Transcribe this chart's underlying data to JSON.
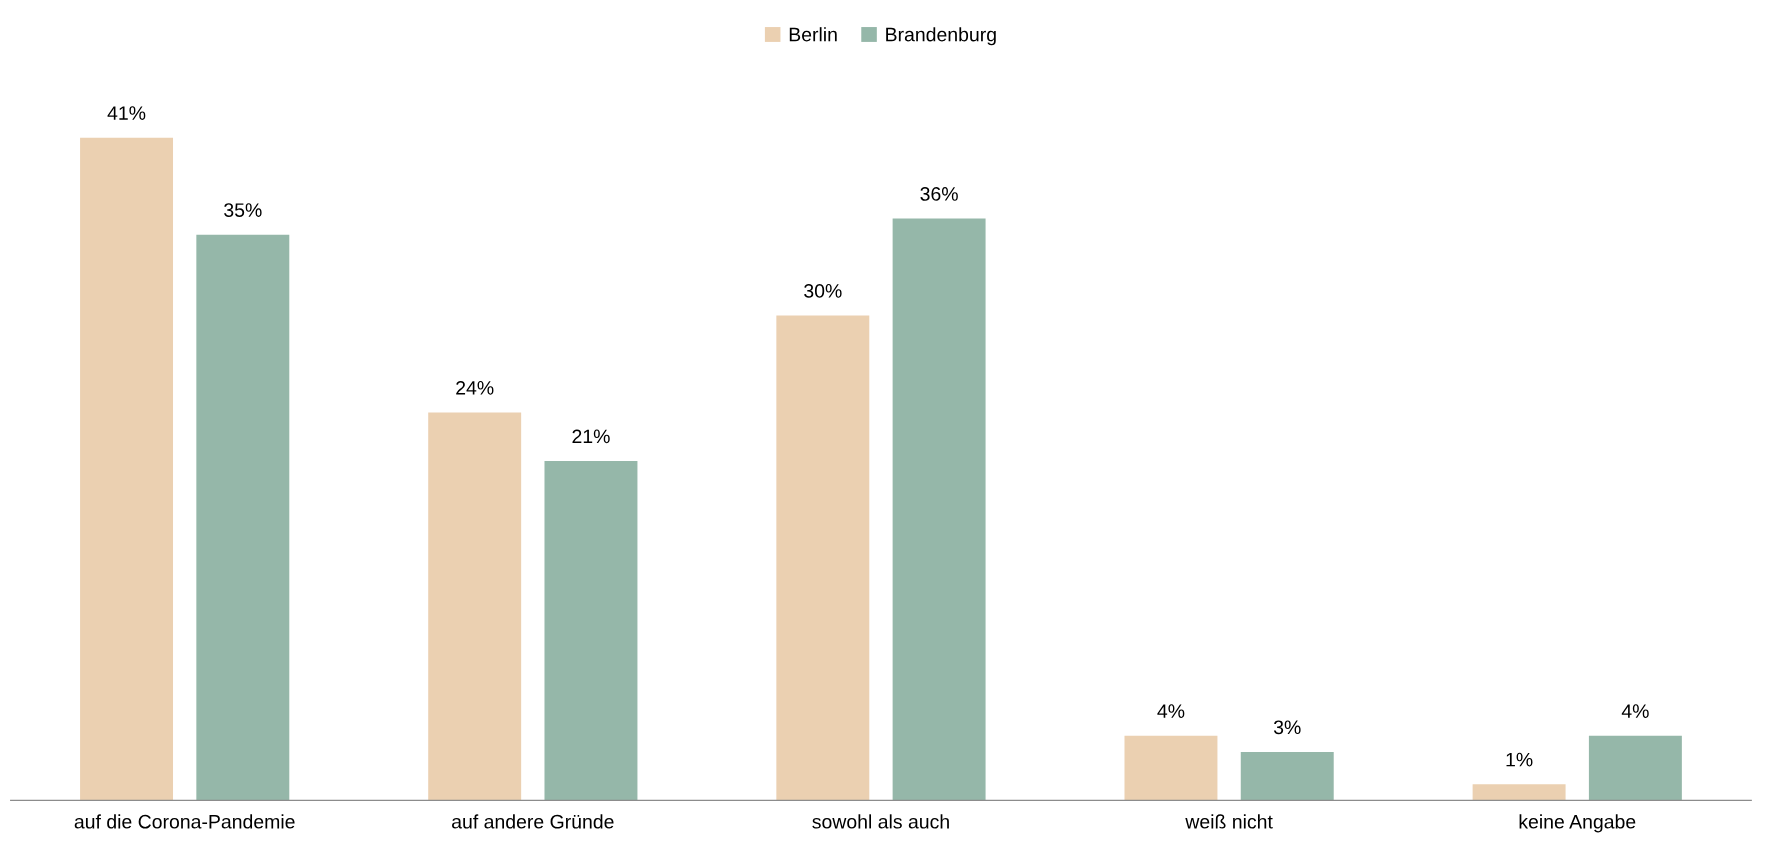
{
  "chart_data": {
    "type": "bar",
    "categories": [
      "auf die Corona-Pandemie",
      "auf andere Gründe",
      "sowohl als auch",
      "weiß nicht",
      "keine Angabe"
    ],
    "series": [
      {
        "name": "Berlin",
        "color": "#ebd0b1",
        "values": [
          41,
          24,
          30,
          4,
          1
        ],
        "value_labels": [
          "41%",
          "24%",
          "30%",
          "4%",
          "1%"
        ]
      },
      {
        "name": "Brandenburg",
        "color": "#95b7a9",
        "values": [
          35,
          21,
          36,
          3,
          4
        ],
        "value_labels": [
          "35%",
          "21%",
          "36%",
          "3%",
          "4%"
        ]
      }
    ],
    "grid": false,
    "legend": "top"
  }
}
